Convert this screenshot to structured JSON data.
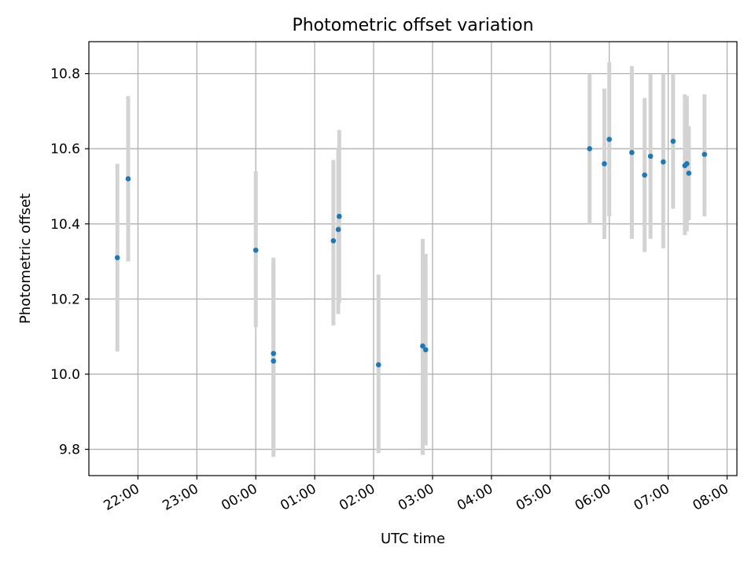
{
  "chart_data": {
    "type": "scatter",
    "title": "Photometric offset variation",
    "xlabel": "UTC time",
    "ylabel": "Photometric offset",
    "xlim": [
      "21:10",
      "32:10"
    ],
    "ylim": [
      9.73,
      10.885
    ],
    "grid": true,
    "x_ticks": [
      "22:00",
      "23:00",
      "00:00",
      "01:00",
      "02:00",
      "03:00",
      "04:00",
      "05:00",
      "06:00",
      "07:00",
      "08:00"
    ],
    "y_ticks": [
      9.8,
      10.0,
      10.2,
      10.4,
      10.6,
      10.8
    ],
    "y_tick_labels": [
      "9.8",
      "10.0",
      "10.2",
      "10.4",
      "10.6",
      "10.8"
    ],
    "colors": {
      "point": "#1f77b4",
      "errorbar": "#d3d3d3",
      "grid": "#b0b0b0"
    },
    "series": [
      {
        "values": [
          {
            "x": "21:39",
            "y": 10.31,
            "ylow": 10.06,
            "yhigh": 10.56
          },
          {
            "x": "21:50",
            "y": 10.52,
            "ylow": 10.3,
            "yhigh": 10.74
          },
          {
            "x": "00:00",
            "y": 10.33,
            "ylow": 10.125,
            "yhigh": 10.54
          },
          {
            "x": "00:18",
            "y": 10.035,
            "ylow": 9.78,
            "yhigh": 10.3
          },
          {
            "x": "00:18",
            "y": 10.055,
            "ylow": 9.8,
            "yhigh": 10.31
          },
          {
            "x": "01:19",
            "y": 10.355,
            "ylow": 10.13,
            "yhigh": 10.57
          },
          {
            "x": "01:24",
            "y": 10.385,
            "ylow": 10.16,
            "yhigh": 10.6
          },
          {
            "x": "01:25",
            "y": 10.42,
            "ylow": 10.19,
            "yhigh": 10.65
          },
          {
            "x": "02:05",
            "y": 10.025,
            "ylow": 9.79,
            "yhigh": 10.265
          },
          {
            "x": "02:50",
            "y": 10.075,
            "ylow": 9.785,
            "yhigh": 10.36
          },
          {
            "x": "02:53",
            "y": 10.065,
            "ylow": 9.81,
            "yhigh": 10.32
          },
          {
            "x": "05:40",
            "y": 10.6,
            "ylow": 10.4,
            "yhigh": 10.8
          },
          {
            "x": "05:55",
            "y": 10.56,
            "ylow": 10.36,
            "yhigh": 10.76
          },
          {
            "x": "06:00",
            "y": 10.625,
            "ylow": 10.42,
            "yhigh": 10.83
          },
          {
            "x": "06:23",
            "y": 10.59,
            "ylow": 10.36,
            "yhigh": 10.82
          },
          {
            "x": "06:36",
            "y": 10.53,
            "ylow": 10.325,
            "yhigh": 10.735
          },
          {
            "x": "06:42",
            "y": 10.58,
            "ylow": 10.36,
            "yhigh": 10.8
          },
          {
            "x": "06:55",
            "y": 10.565,
            "ylow": 10.335,
            "yhigh": 10.8
          },
          {
            "x": "07:05",
            "y": 10.62,
            "ylow": 10.44,
            "yhigh": 10.8
          },
          {
            "x": "07:17",
            "y": 10.555,
            "ylow": 10.37,
            "yhigh": 10.745
          },
          {
            "x": "07:19",
            "y": 10.56,
            "ylow": 10.38,
            "yhigh": 10.74
          },
          {
            "x": "07:21",
            "y": 10.535,
            "ylow": 10.41,
            "yhigh": 10.66
          },
          {
            "x": "07:37",
            "y": 10.585,
            "ylow": 10.42,
            "yhigh": 10.745
          }
        ]
      }
    ]
  }
}
